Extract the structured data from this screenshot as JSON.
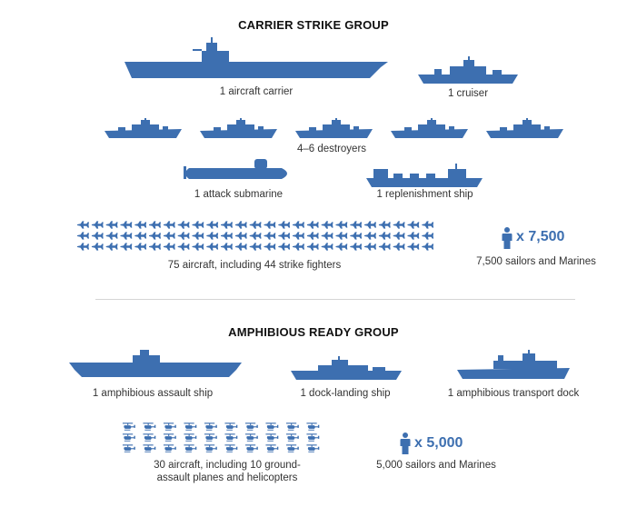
{
  "colors": {
    "ship": "#3d6fb0",
    "text": "#333333",
    "divider": "#d5d5d5"
  },
  "carrier_group": {
    "title": "CARRIER STRIKE GROUP",
    "carrier_label": "1 aircraft carrier",
    "cruiser_label": "1 cruiser",
    "destroyers_label": "4–6 destroyers",
    "destroyer_count_shown": 5,
    "submarine_label": "1 attack submarine",
    "replenishment_label": "1 replenishment ship",
    "aircraft_label": "75 aircraft, including 44 strike fighters",
    "aircraft_icon_count": 75,
    "personnel_count": "x 7,500",
    "personnel_label": "7,500 sailors and Marines"
  },
  "amphibious_group": {
    "title": "AMPHIBIOUS READY GROUP",
    "assault_label": "1 amphibious assault ship",
    "dock_landing_label": "1 dock-landing ship",
    "transport_dock_label": "1 amphibious transport dock",
    "aircraft_label_line1": "30 aircraft, including 10 ground-",
    "aircraft_label_line2": "assault planes and helicopters",
    "aircraft_icon_count": 30,
    "personnel_count": "x 5,000",
    "personnel_label": "5,000 sailors and Marines"
  }
}
